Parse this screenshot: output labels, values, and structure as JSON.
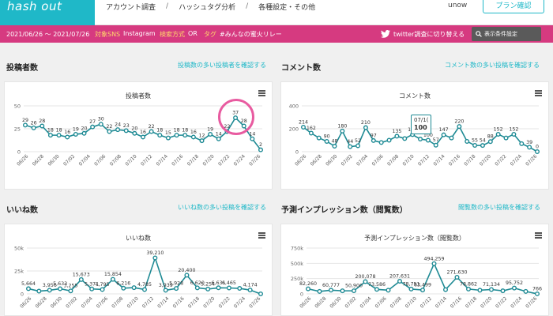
{
  "header": {
    "logo": "hash out",
    "nav": [
      "アカウント調査",
      "ハッシュタグ分析",
      "各種設定・その他"
    ],
    "user": "unow",
    "plan_button": "プラン確認"
  },
  "filter": {
    "date_range": "2021/06/26 〜 2021/07/26",
    "sns_label": "対象SNS",
    "sns_value": "Instagram",
    "search_label": "検索方式",
    "search_value": "OR",
    "tag_label": "タグ",
    "tag_value": "#みんなの蜜火リレー",
    "twitter_label": "twitter調査に切り替える",
    "conditions_button": "表示条件設定"
  },
  "sections": {
    "posts": {
      "title": "投稿者数",
      "link": "投稿数の多い投稿者を確認する"
    },
    "comments": {
      "title": "コメント数",
      "link": "コメント数の多い投稿を確認する"
    },
    "likes": {
      "title": "いいね数",
      "link": "いいね数の多い投稿を確認する"
    },
    "impressions": {
      "title": "予測インプレッション数（閲覧数）",
      "link": "閲覧数の多い投稿を確認する"
    }
  },
  "tooltip": {
    "date": "07/1(",
    "value": "100"
  },
  "colors": {
    "line": "#1e8a94",
    "accent": "#1fb8c8",
    "filter_bg": "#d63a80",
    "highlight": "#e85ba0"
  },
  "chart_data": [
    {
      "type": "line",
      "title": "投稿者数",
      "ylim": [
        0,
        50
      ],
      "yticks": [
        "0",
        "25",
        "50"
      ],
      "xticks": [
        "06/26",
        "06/28",
        "06/30",
        "07/02",
        "07/04",
        "07/06",
        "07/08",
        "07/10",
        "07/12",
        "07/14",
        "07/16",
        "07/18",
        "07/20",
        "07/22",
        "07/24",
        "07/26"
      ],
      "values": [
        29,
        26,
        28,
        18,
        18,
        16,
        19,
        20,
        27,
        30,
        22,
        24,
        23,
        20,
        16,
        22,
        18,
        15,
        18,
        18,
        16,
        12,
        19,
        14,
        22,
        37,
        28,
        14,
        2
      ],
      "labels": [
        "29",
        "26",
        "28",
        "18",
        "18",
        "16",
        "19",
        "20",
        "27",
        "30",
        "22",
        "24",
        "23",
        "20",
        "16",
        "22",
        "18",
        "15",
        "18",
        "18",
        "16",
        "12",
        "19",
        "14",
        "22",
        "37",
        "28",
        "14",
        "2"
      ]
    },
    {
      "type": "line",
      "title": "コメント数",
      "ylim": [
        0,
        400
      ],
      "yticks": [
        "0",
        "200",
        "400"
      ],
      "xticks": [
        "06/26",
        "06/28",
        "06/30",
        "07/02",
        "07/04",
        "07/06",
        "07/08",
        "07/10",
        "07/12",
        "07/14",
        "07/16",
        "07/18",
        "07/20",
        "07/22",
        "07/24",
        "07/26"
      ],
      "values": [
        214,
        162,
        120,
        90,
        48,
        180,
        44,
        52,
        210,
        97,
        80,
        100,
        135,
        115,
        149,
        110,
        100,
        57,
        147,
        120,
        220,
        90,
        55,
        54,
        88,
        152,
        120,
        152,
        70,
        39,
        0
      ],
      "labels": [
        "214",
        "162",
        "",
        "90",
        "48",
        "180",
        "44",
        "52",
        "210",
        "97",
        "",
        "",
        "135",
        "",
        "149",
        "",
        "100",
        "57",
        "147",
        "",
        "220",
        "",
        "55",
        "54",
        "88",
        "152",
        "",
        "152",
        "",
        "39",
        "0"
      ]
    },
    {
      "type": "line",
      "title": "いいね数",
      "ylim": [
        0,
        50000
      ],
      "yticks": [
        "0",
        "25k",
        "50k"
      ],
      "xticks": [
        "06/26",
        "06/28",
        "06/30",
        "07/02",
        "07/04",
        "07/06",
        "07/08",
        "07/10",
        "07/12",
        "07/14",
        "07/16",
        "07/18",
        "07/20",
        "07/22",
        "07/24",
        "07/26"
      ],
      "values": [
        5664,
        3000,
        3956,
        5633,
        3255,
        15673,
        5371,
        4795,
        15854,
        6216,
        6800,
        4785,
        39210,
        3939,
        5928,
        20400,
        6620,
        5254,
        6631,
        6465,
        6000,
        4174,
        0
      ],
      "labels": [
        "5,664",
        "",
        "3,956",
        "5,633",
        "3,255",
        "15,673",
        "5,371",
        "4,795",
        "15,854",
        "6,216",
        "",
        "4,785",
        "39,210",
        "3,939",
        "5,928",
        "20,400",
        "6,620",
        "5,254",
        "6,631",
        "6,465",
        "",
        "4,174",
        ""
      ]
    },
    {
      "type": "line",
      "title": "予測インプレッション数（閲覧数）",
      "ylim": [
        0,
        750000
      ],
      "yticks": [
        "0",
        "250k",
        "500k",
        "750k"
      ],
      "xticks": [
        "06/26",
        "06/28",
        "06/30",
        "07/02",
        "07/04",
        "07/06",
        "07/08",
        "07/10",
        "07/12",
        "07/14",
        "07/16",
        "07/18",
        "07/20",
        "07/22",
        "07/24",
        "07/26"
      ],
      "values": [
        82260,
        40000,
        60777,
        50000,
        50900,
        200078,
        73586,
        60000,
        207631,
        78751,
        63499,
        494259,
        70000,
        271630,
        78862,
        60000,
        71134,
        50000,
        95752,
        40000,
        766
      ],
      "labels": [
        "82,260",
        "",
        "60,777",
        "",
        "50,900",
        "200,078",
        "73,586",
        "",
        "207,631",
        "78,751",
        "63,499",
        "494,259",
        "",
        "271,630",
        "78,862",
        "",
        "71,134",
        "",
        "95,752",
        "",
        "766"
      ]
    }
  ]
}
